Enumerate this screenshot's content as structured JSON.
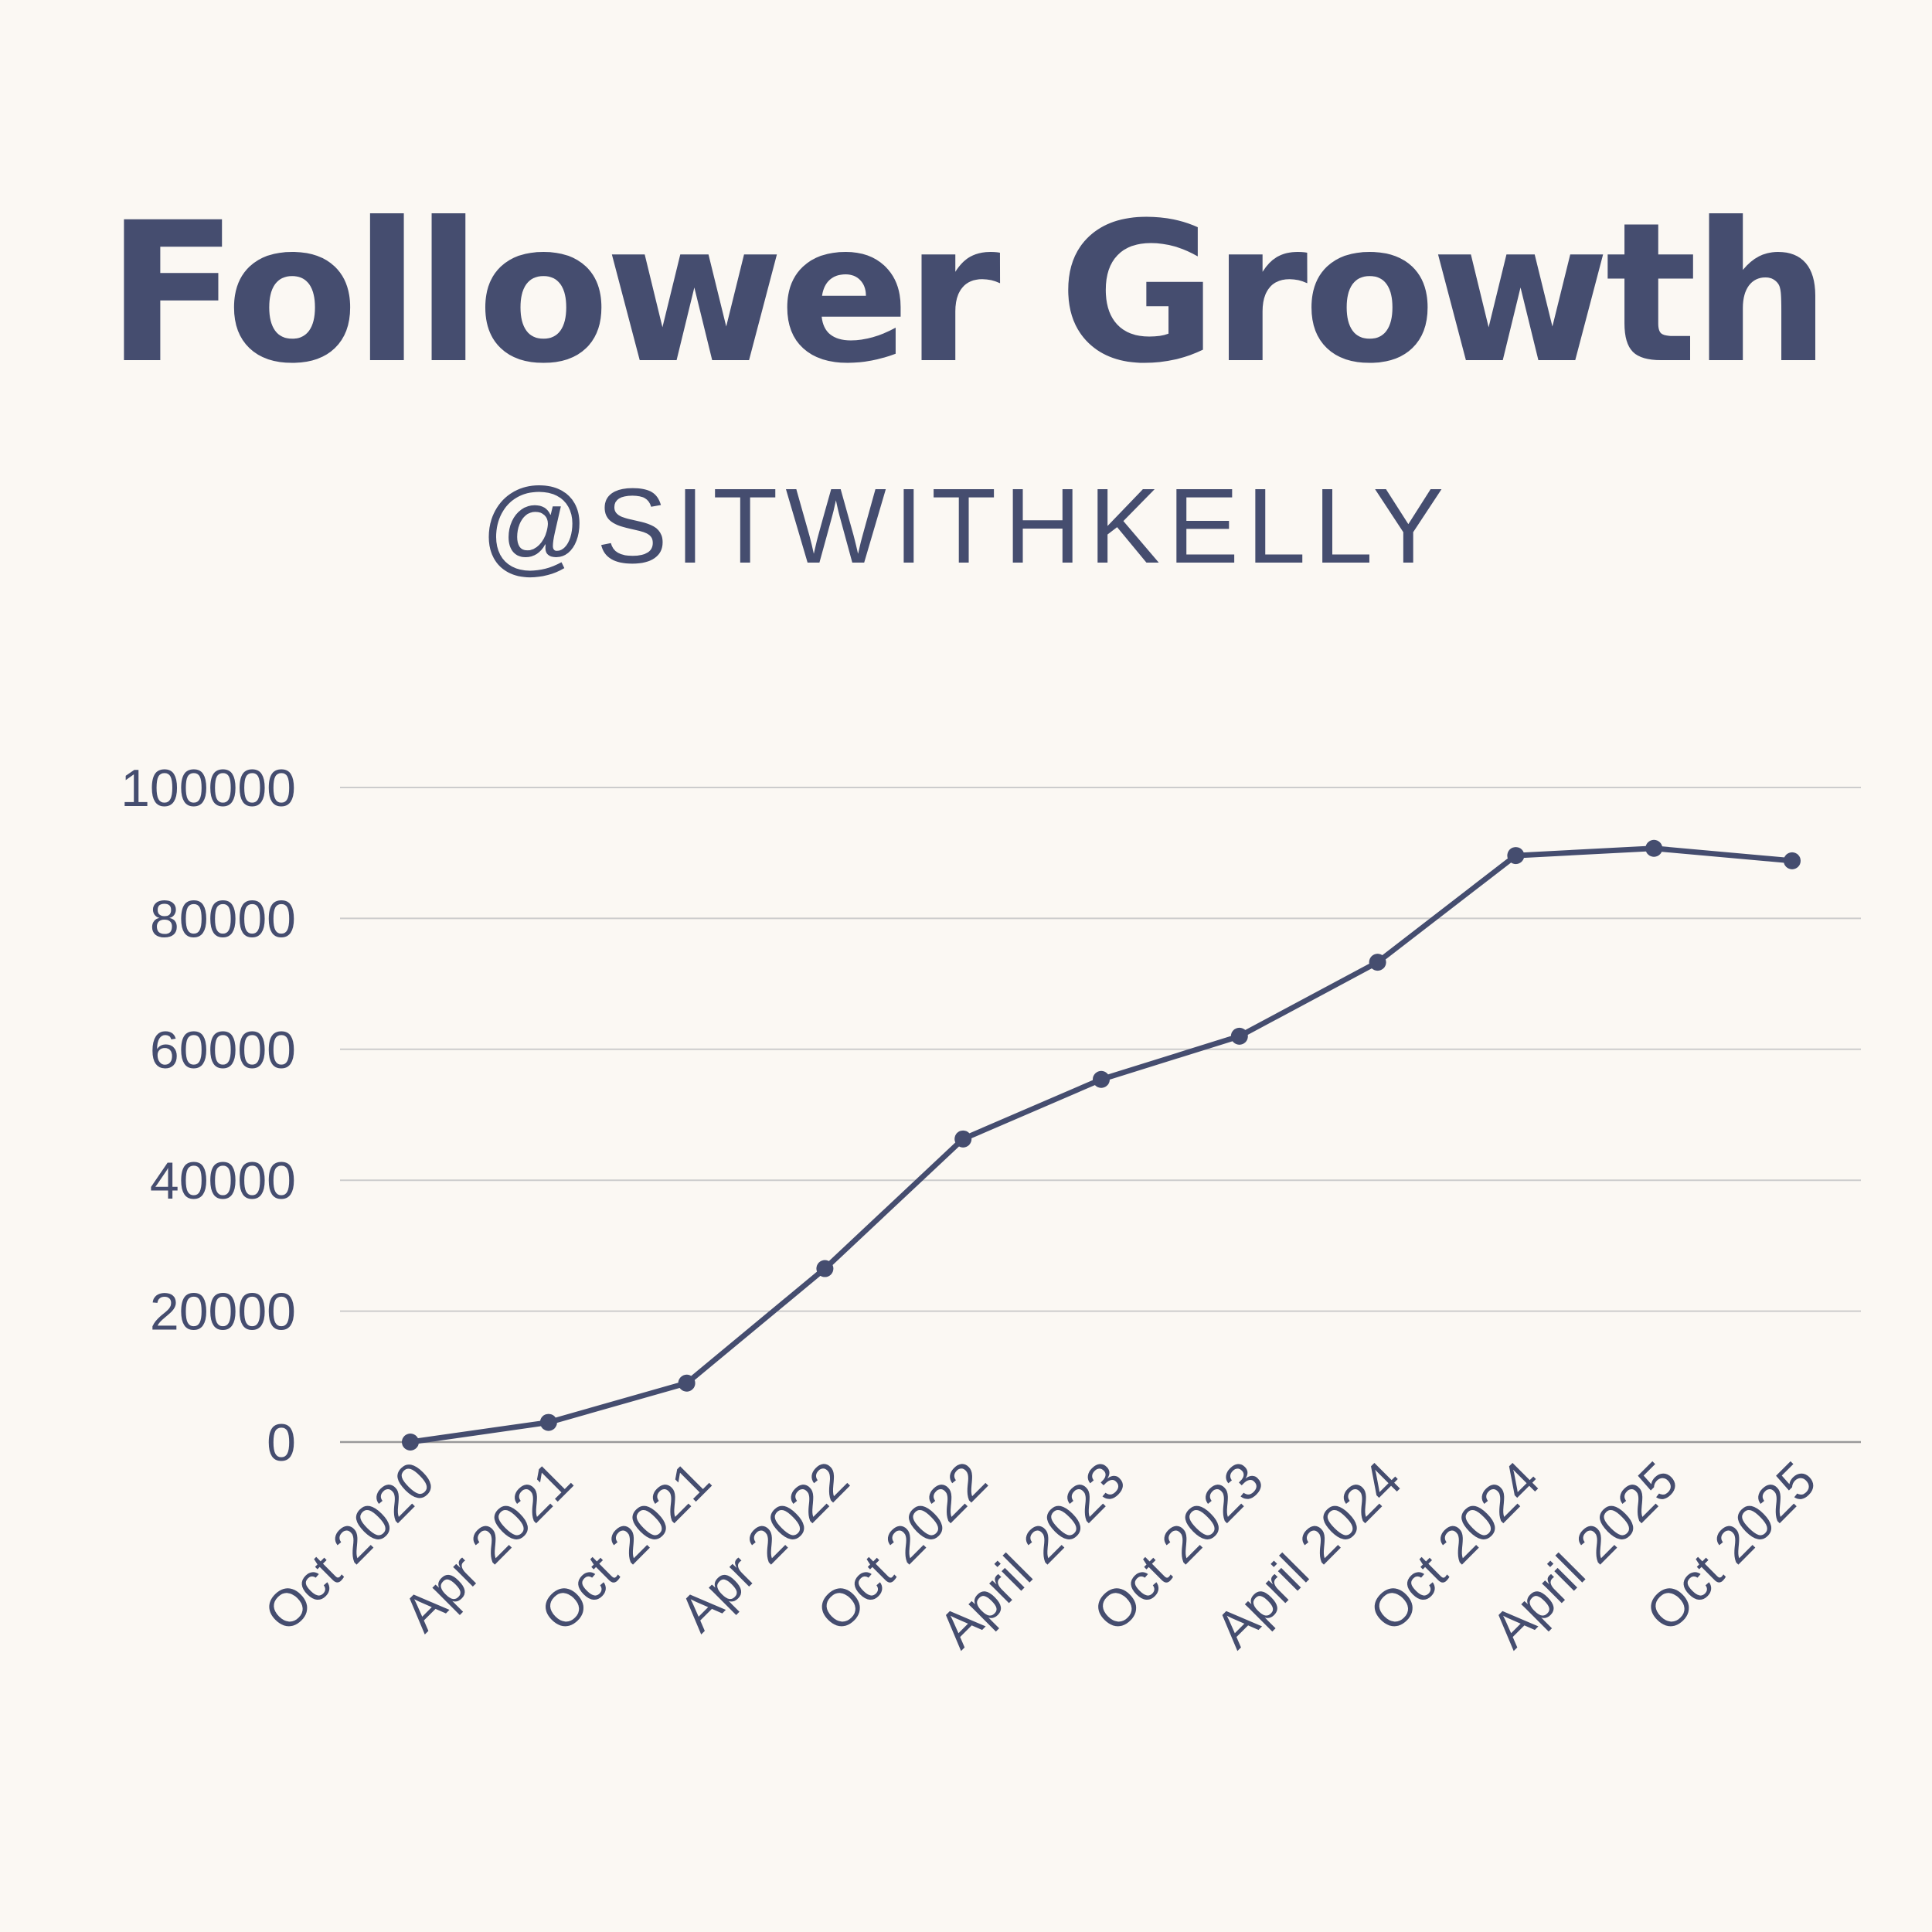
{
  "header": {
    "title": "Follower Growth",
    "subtitle": "@SITWITHKELLY"
  },
  "colors": {
    "background": "#FBF8F3",
    "series": "#454D6F",
    "text": "#454D6F",
    "grid": "#CCCCCC",
    "axis": "#999999"
  },
  "chart_data": {
    "type": "line",
    "title": "Follower Growth",
    "subtitle": "@SITWITHKELLY",
    "xlabel": "",
    "ylabel": "",
    "categories": [
      "Oct 2020",
      "Apr 2021",
      "Oct 2021",
      "Apr 2022",
      "Oct 2022",
      "April 2023",
      "Oct 2023",
      "April 2024",
      "Oct 2024",
      "April 2025",
      "Oct 2025"
    ],
    "values": [
      0,
      3000,
      9000,
      26500,
      46300,
      55400,
      62000,
      73300,
      89600,
      90700,
      88800
    ],
    "ylim": [
      0,
      100000
    ],
    "yticks": [
      "0",
      "20000",
      "40000",
      "60000",
      "80000",
      "100000"
    ],
    "grid": "horizontal",
    "markers": true,
    "legend": "none"
  }
}
